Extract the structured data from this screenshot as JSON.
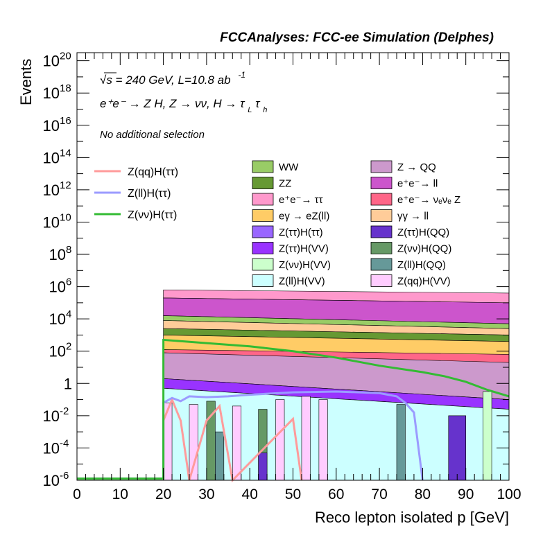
{
  "chart_data": {
    "type": "area",
    "title": "FCCAnalyses: FCC-ee Simulation (Delphes)",
    "xlabel": "Reco lepton isolated p [GeV]",
    "ylabel": "Events",
    "xlim": [
      0,
      100
    ],
    "ylim_log10": [
      -6,
      20.5
    ],
    "x_ticks": [
      "0",
      "10",
      "20",
      "30",
      "40",
      "50",
      "60",
      "70",
      "80",
      "90",
      "100"
    ],
    "y_ticks": [
      {
        "exp": -6,
        "label": "10",
        "sup": "-6"
      },
      {
        "exp": -4,
        "label": "10",
        "sup": "-4"
      },
      {
        "exp": -2,
        "label": "10",
        "sup": "-2"
      },
      {
        "exp": 0,
        "label": "1",
        "sup": ""
      },
      {
        "exp": 2,
        "label": "10",
        "sup": "2"
      },
      {
        "exp": 4,
        "label": "10",
        "sup": "4"
      },
      {
        "exp": 6,
        "label": "10",
        "sup": "6"
      },
      {
        "exp": 8,
        "label": "10",
        "sup": "8"
      },
      {
        "exp": 10,
        "label": "10",
        "sup": "10"
      },
      {
        "exp": 12,
        "label": "10",
        "sup": "12"
      },
      {
        "exp": 14,
        "label": "10",
        "sup": "14"
      },
      {
        "exp": 16,
        "label": "10",
        "sup": "16"
      },
      {
        "exp": 18,
        "label": "10",
        "sup": "18"
      },
      {
        "exp": 20,
        "label": "10",
        "sup": "20"
      }
    ],
    "annotations": {
      "energy": "√s = 240 GeV, L=10.8 ab",
      "energy_sup": "-1",
      "process": "e⁺e⁻ → Z H, Z → νν, H → τ",
      "process_sub1": "L",
      "process_tau": "τ",
      "process_sub2": "h",
      "selection": "No additional selection"
    },
    "signals": [
      {
        "name": "Z(qq)H(ττ)",
        "color": "#ff9b9b"
      },
      {
        "name": "Z(ll)H(ττ)",
        "color": "#9b9bff"
      },
      {
        "name": "Z(νν)H(ττ)",
        "color": "#33bb33"
      }
    ],
    "backgrounds": [
      {
        "name": "WW",
        "color": "#99cc66"
      },
      {
        "name": "Z → QQ",
        "color": "#cc99cc"
      },
      {
        "name": "ZZ",
        "color": "#669933"
      },
      {
        "name": "e⁺e⁻→ ll",
        "color": "#cc55cc"
      },
      {
        "name": "e⁺e⁻→ ττ",
        "color": "#ff99cc"
      },
      {
        "name": "e⁺e⁻→ νₑνₑ Z",
        "color": "#ff6688"
      },
      {
        "name": "eγ → eZ(ll)",
        "color": "#ffcc66"
      },
      {
        "name": "γγ → ll",
        "color": "#ffcc99"
      },
      {
        "name": "Z(ττ)H(ττ)",
        "color": "#9966ff"
      },
      {
        "name": "Z(ττ)H(QQ)",
        "color": "#6633cc"
      },
      {
        "name": "Z(ττ)H(VV)",
        "color": "#9933ff"
      },
      {
        "name": "Z(νν)H(QQ)",
        "color": "#669966"
      },
      {
        "name": "Z(νν)H(VV)",
        "color": "#ccffcc"
      },
      {
        "name": "Z(ll)H(QQ)",
        "color": "#669999"
      },
      {
        "name": "Z(ll)H(VV)",
        "color": "#ccffff"
      },
      {
        "name": "Z(qq)H(VV)",
        "color": "#ffccff"
      }
    ],
    "stack_layers_log10": [
      {
        "color": "#ff99cc",
        "start": [
          5.8,
          5.3
        ],
        "end": [
          5.6,
          5.0
        ]
      },
      {
        "color": "#cc55cc",
        "start": [
          5.3,
          4.2
        ],
        "end": [
          5.0,
          3.7
        ]
      },
      {
        "color": "#99cc66",
        "start": [
          4.2,
          3.9
        ],
        "end": [
          3.7,
          3.4
        ]
      },
      {
        "color": "#ffcc99",
        "start": [
          3.9,
          3.4
        ],
        "end": [
          3.4,
          3.0
        ]
      },
      {
        "color": "#669933",
        "start": [
          3.4,
          3.0
        ],
        "end": [
          3.0,
          2.6
        ]
      },
      {
        "color": "#ffcc66",
        "start": [
          3.0,
          2.1
        ],
        "end": [
          2.6,
          0.4
        ]
      },
      {
        "color": "#ff6688",
        "start": [
          2.1,
          1.9
        ],
        "end": [
          1.8,
          1.0
        ]
      },
      {
        "color": "#cc99cc",
        "start": [
          1.9,
          0.3
        ],
        "end": [
          1.3,
          -1.0
        ]
      },
      {
        "color": "#9933ff",
        "start": [
          0.3,
          -0.3
        ],
        "end": [
          -1.0,
          -1.6
        ]
      },
      {
        "color": "#ccffff",
        "start": [
          -0.3,
          -6.0
        ],
        "end": [
          -1.6,
          -6.0
        ]
      }
    ],
    "signal_curves_log10": {
      "Z(νν)H(ττ)": [
        [
          20,
          2.7
        ],
        [
          25,
          2.6
        ],
        [
          30,
          2.5
        ],
        [
          40,
          2.3
        ],
        [
          50,
          2.0
        ],
        [
          60,
          1.6
        ],
        [
          70,
          1.1
        ],
        [
          80,
          0.7
        ],
        [
          85,
          0.45
        ],
        [
          90,
          0.1
        ],
        [
          95,
          -0.4
        ],
        [
          100,
          -0.8
        ]
      ],
      "Z(ll)H(ττ)": [
        [
          20,
          -1.2
        ],
        [
          22,
          -0.9
        ],
        [
          24,
          -1.1
        ],
        [
          26,
          -0.8
        ],
        [
          30,
          -0.85
        ],
        [
          35,
          -0.8
        ],
        [
          40,
          -0.7
        ],
        [
          50,
          -0.55
        ],
        [
          60,
          -0.5
        ],
        [
          70,
          -0.6
        ],
        [
          74,
          -0.8
        ],
        [
          76,
          -1.2
        ],
        [
          78,
          -1.8
        ],
        [
          80,
          -6.0
        ]
      ],
      "Z(qq)H(ττ)": [
        [
          20,
          -2.3
        ],
        [
          22,
          -1.0
        ],
        [
          24,
          -2.3
        ],
        [
          26,
          -6.0
        ],
        [
          30,
          -2.3
        ],
        [
          33,
          -1.4
        ],
        [
          36,
          -6.0
        ],
        [
          50,
          -2.2
        ],
        [
          52,
          -6.0
        ]
      ]
    },
    "sparse_bins_log10": [
      {
        "x": [
          20,
          22
        ],
        "h": -1.2,
        "color": "#ffccff"
      },
      {
        "x": [
          26,
          28
        ],
        "h": -1.3,
        "color": "#ffccff"
      },
      {
        "x": [
          30,
          32
        ],
        "h": -1.1,
        "color": "#669966"
      },
      {
        "x": [
          32,
          34
        ],
        "h": -3.0,
        "color": "#669999"
      },
      {
        "x": [
          36,
          38
        ],
        "h": -1.4,
        "color": "#ffccff"
      },
      {
        "x": [
          42,
          44
        ],
        "h": -1.6,
        "color": "#669966"
      },
      {
        "x": [
          42,
          44
        ],
        "h": -4.3,
        "color": "#6633cc"
      },
      {
        "x": [
          46,
          48
        ],
        "h": -1.0,
        "color": "#ffccff"
      },
      {
        "x": [
          52,
          54
        ],
        "h": -0.8,
        "color": "#ffccff"
      },
      {
        "x": [
          56,
          58
        ],
        "h": -1.0,
        "color": "#ffccff"
      },
      {
        "x": [
          74,
          76
        ],
        "h": -1.3,
        "color": "#669999"
      },
      {
        "x": [
          86,
          90
        ],
        "h": -2.0,
        "color": "#6633cc"
      },
      {
        "x": [
          94,
          96
        ],
        "h": -0.5,
        "color": "#ccffcc"
      }
    ]
  }
}
